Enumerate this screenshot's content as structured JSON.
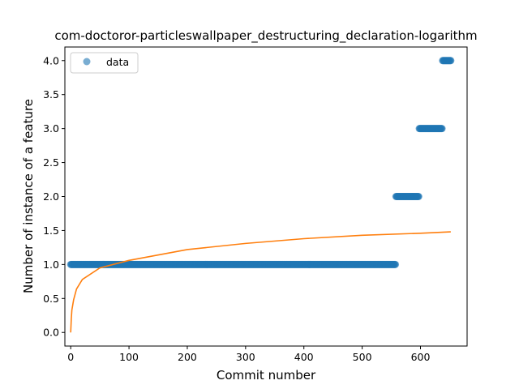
{
  "chart_data": {
    "type": "scatter",
    "title": "com-doctoror-particleswallpaper_destructuring_declaration-logarithm",
    "xlabel": "Commit number",
    "ylabel": "Number of instance of a feature",
    "xlim": [
      -10,
      680
    ],
    "ylim": [
      -0.2,
      4.2
    ],
    "xticks": [
      0,
      100,
      200,
      300,
      400,
      500,
      600
    ],
    "yticks": [
      0.0,
      0.5,
      1.0,
      1.5,
      2.0,
      2.5,
      3.0,
      3.5,
      4.0
    ],
    "legend": {
      "placement": "upper-left",
      "entries": [
        "data"
      ]
    },
    "colors": {
      "data": "#1f77b4",
      "fit": "#ff7f0e"
    },
    "series": [
      {
        "name": "data",
        "kind": "scatter",
        "segments": [
          {
            "x_start": 0,
            "x_end": 557,
            "y": 1.0
          },
          {
            "x_start": 558,
            "x_end": 597,
            "y": 2.0
          },
          {
            "x_start": 598,
            "x_end": 637,
            "y": 3.0
          },
          {
            "x_start": 638,
            "x_end": 652,
            "y": 4.0
          }
        ]
      },
      {
        "kind": "line",
        "model": "logarithmic",
        "x": [
          0,
          1,
          2,
          5,
          10,
          20,
          50,
          100,
          200,
          300,
          400,
          500,
          600,
          652
        ],
        "y": [
          0.0,
          0.2,
          0.33,
          0.48,
          0.64,
          0.78,
          0.95,
          1.06,
          1.22,
          1.31,
          1.38,
          1.43,
          1.46,
          1.48
        ]
      }
    ]
  }
}
